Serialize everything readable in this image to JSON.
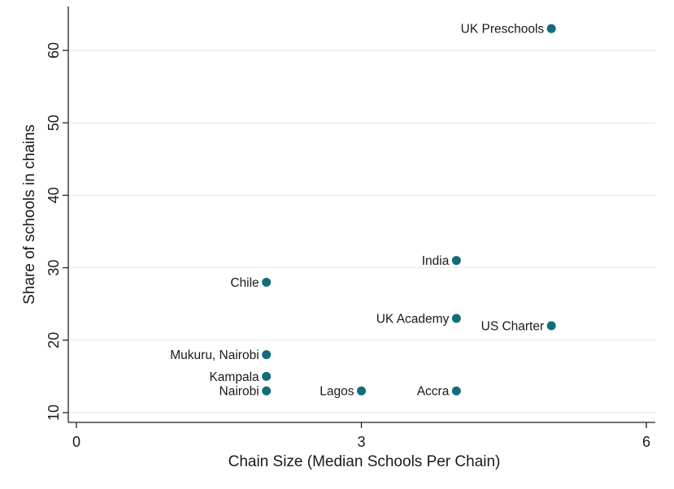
{
  "chart_data": {
    "type": "scatter",
    "title": "",
    "xlabel": "Chain Size (Median Schools Per Chain)",
    "ylabel": "Share of schools in chains",
    "xlim": [
      0,
      6
    ],
    "ylim": [
      10,
      64
    ],
    "xticks": [
      0,
      3,
      6
    ],
    "yticks": [
      10,
      20,
      30,
      40,
      50,
      60
    ],
    "grid": "horizontal",
    "marker_color": "#126d7a",
    "points": [
      {
        "label": "UK Preschools",
        "x": 5,
        "y": 63
      },
      {
        "label": "India",
        "x": 4,
        "y": 31
      },
      {
        "label": "Chile",
        "x": 2,
        "y": 28
      },
      {
        "label": "UK Academy",
        "x": 4,
        "y": 23
      },
      {
        "label": "US Charter",
        "x": 5,
        "y": 22
      },
      {
        "label": "Mukuru, Nairobi",
        "x": 2,
        "y": 18
      },
      {
        "label": "Kampala",
        "x": 2,
        "y": 15
      },
      {
        "label": "Nairobi",
        "x": 2,
        "y": 13
      },
      {
        "label": "Lagos",
        "x": 3,
        "y": 13
      },
      {
        "label": "Accra",
        "x": 4,
        "y": 13
      }
    ]
  }
}
